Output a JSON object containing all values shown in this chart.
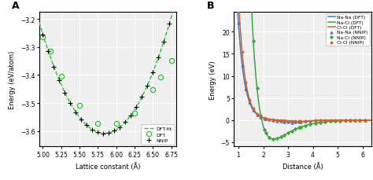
{
  "panel_A": {
    "xlabel": "Lattice constant (Å)",
    "ylabel": "Energy (eV/atom)",
    "xlim": [
      4.95,
      6.82
    ],
    "ylim": [
      -3.655,
      -3.175
    ],
    "xticks": [
      5.0,
      5.25,
      5.5,
      5.75,
      6.0,
      6.25,
      6.5,
      6.75
    ],
    "yticks": [
      -3.2,
      -3.3,
      -3.4,
      -3.5,
      -3.6
    ],
    "dft_x": [
      5.0,
      5.1,
      5.25,
      5.5,
      5.75,
      6.0,
      6.25,
      6.5,
      6.6,
      6.75
    ],
    "dft_y": [
      -3.263,
      -3.315,
      -3.405,
      -3.508,
      -3.572,
      -3.572,
      -3.535,
      -3.452,
      -3.408,
      -3.348
    ],
    "fit_a0": 5.84,
    "fit_E0": -3.608,
    "fit_B": 0.5,
    "fit_color": "#22cc22",
    "dft_color": "#22cc22",
    "nnip_color": "black",
    "nnip_step": 0.075
  },
  "panel_B": {
    "xlabel": "Distance (Å)",
    "ylabel": "Energy (eV)",
    "xlim": [
      0.82,
      6.35
    ],
    "ylim": [
      -6.0,
      24.5
    ],
    "xticks": [
      1.0,
      2.0,
      3.0,
      4.0,
      5.0,
      6.0
    ],
    "yticks": [
      -5.0,
      0.0,
      5.0,
      10.0,
      15.0,
      20.0
    ],
    "na_na_color": "#3b78c3",
    "na_cl_color": "#3aaa3a",
    "cl_cl_color": "#d95f22",
    "nnip_na_na_marker": "^",
    "nnip_na_cl_marker": "D",
    "nnip_cl_cl_marker": "o"
  },
  "bg_color": "#efefef",
  "grid_color": "white"
}
